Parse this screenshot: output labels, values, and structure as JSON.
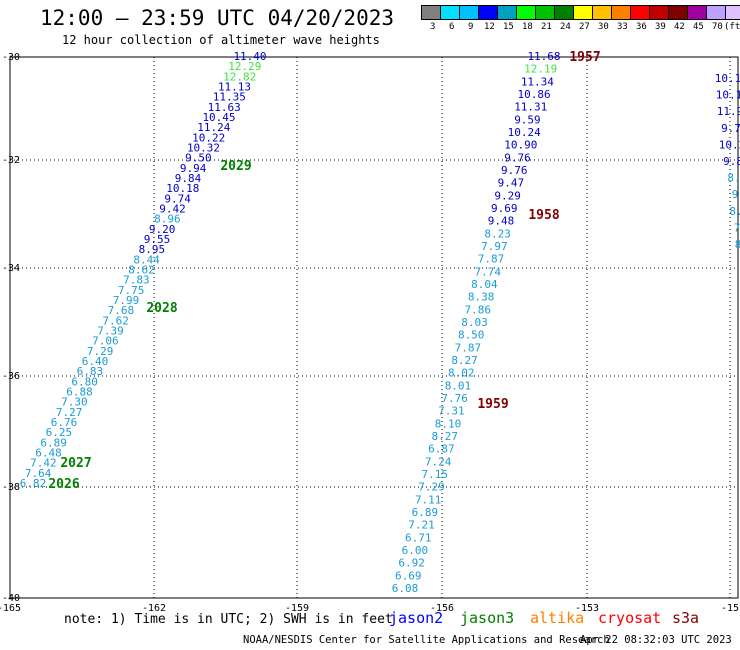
{
  "header": {
    "title": "12:00 — 23:59 UTC 04/20/2023",
    "subtitle": "12 hour collection of altimeter wave heights"
  },
  "color_scale": {
    "colors": [
      "#808080",
      "#00e0ff",
      "#00c0ff",
      "#0000ff",
      "#00a0c0",
      "#00ff00",
      "#00c000",
      "#008000",
      "#ffff00",
      "#ffc000",
      "#ff8000",
      "#ff0000",
      "#c00000",
      "#800000",
      "#a000a0",
      "#c0a0ff",
      "#e0c0ff",
      "#000000"
    ],
    "labels": [
      "3",
      "6",
      "9",
      "12",
      "15",
      "18",
      "21",
      "24",
      "27",
      "30",
      "33",
      "36",
      "39",
      "42",
      "45",
      "70",
      "(ft)"
    ]
  },
  "map": {
    "lon_ticks": [
      "-165",
      "-162",
      "-159",
      "-156",
      "-153",
      "-15"
    ],
    "lat_ticks": [
      "-30",
      "-32",
      "-34",
      "-36",
      "-38",
      "-40"
    ],
    "track_colors": {
      "lb": "#1a9cd6",
      "b": "#0000c8",
      "lg": "#40e040",
      "g": "#008000",
      "dr": "#800000"
    },
    "track1": [
      [
        "11.40",
        "b"
      ],
      [
        "12.29",
        "lg"
      ],
      [
        "12.82",
        "lg"
      ],
      [
        "11.13",
        "b"
      ],
      [
        "11.35",
        "b"
      ],
      [
        "11.63",
        "b"
      ],
      [
        "10.45",
        "b"
      ],
      [
        "11.24",
        "b"
      ],
      [
        "10.22",
        "b"
      ],
      [
        "10.32",
        "b"
      ],
      [
        "9.50",
        "b"
      ],
      [
        "9.94",
        "b"
      ],
      [
        "9.84",
        "b"
      ],
      [
        "10.18",
        "b"
      ],
      [
        "9.74",
        "b"
      ],
      [
        "9.42",
        "b"
      ],
      [
        "8.96",
        "lb"
      ],
      [
        "9.20",
        "b"
      ],
      [
        "9.55",
        "b"
      ],
      [
        "8.95",
        "b"
      ],
      [
        "8.44",
        "lb"
      ],
      [
        "8.62",
        "lb"
      ],
      [
        "7.83",
        "lb"
      ],
      [
        "7.75",
        "lb"
      ],
      [
        "7.99",
        "lb"
      ],
      [
        "7.68",
        "lb"
      ],
      [
        "7.62",
        "lb"
      ],
      [
        "7.39",
        "lb"
      ],
      [
        "7.06",
        "lb"
      ],
      [
        "7.29",
        "lb"
      ],
      [
        "6.40",
        "lb"
      ],
      [
        "6.83",
        "lb"
      ],
      [
        "6.80",
        "lb"
      ],
      [
        "6.88",
        "lb"
      ],
      [
        "7.30",
        "lb"
      ],
      [
        "7.27",
        "lb"
      ],
      [
        "6.76",
        "lb"
      ],
      [
        "6.25",
        "lb"
      ],
      [
        "6.89",
        "lb"
      ],
      [
        "6.48",
        "lb"
      ],
      [
        "7.42",
        "lb"
      ],
      [
        "7.64",
        "lb"
      ],
      [
        "6.82",
        "lb"
      ]
    ],
    "track1_times": [
      [
        "2029",
        "g"
      ],
      [
        "2028",
        "g"
      ],
      [
        "2027",
        "g"
      ],
      [
        "2026",
        "g"
      ]
    ],
    "track2": [
      [
        "11.68",
        "b"
      ],
      [
        "12.19",
        "lg"
      ],
      [
        "11.34",
        "b"
      ],
      [
        "10.86",
        "b"
      ],
      [
        "11.31",
        "b"
      ],
      [
        "9.59",
        "b"
      ],
      [
        "10.24",
        "b"
      ],
      [
        "10.90",
        "b"
      ],
      [
        "9.76",
        "b"
      ],
      [
        "9.76",
        "b"
      ],
      [
        "9.47",
        "b"
      ],
      [
        "9.29",
        "b"
      ],
      [
        "9.69",
        "b"
      ],
      [
        "9.48",
        "b"
      ],
      [
        "8.23",
        "lb"
      ],
      [
        "7.97",
        "lb"
      ],
      [
        "7.87",
        "lb"
      ],
      [
        "7.74",
        "lb"
      ],
      [
        "8.04",
        "lb"
      ],
      [
        "8.38",
        "lb"
      ],
      [
        "7.86",
        "lb"
      ],
      [
        "8.03",
        "lb"
      ],
      [
        "8.50",
        "lb"
      ],
      [
        "7.87",
        "lb"
      ],
      [
        "8.27",
        "lb"
      ],
      [
        "8.02",
        "lb"
      ],
      [
        "8.01",
        "lb"
      ],
      [
        "7.76",
        "lb"
      ],
      [
        "7.31",
        "lb"
      ],
      [
        "8.10",
        "lb"
      ],
      [
        "8.27",
        "lb"
      ],
      [
        "6.87",
        "lb"
      ],
      [
        "7.24",
        "lb"
      ],
      [
        "7.15",
        "lb"
      ],
      [
        "7.29",
        "lb"
      ],
      [
        "7.11",
        "lb"
      ],
      [
        "6.89",
        "lb"
      ],
      [
        "7.21",
        "lb"
      ],
      [
        "6.71",
        "lb"
      ],
      [
        "6.00",
        "lb"
      ],
      [
        "6.92",
        "lb"
      ],
      [
        "6.69",
        "lb"
      ],
      [
        "6.08",
        "lb"
      ]
    ],
    "track2_times": [
      [
        "1957",
        "dr"
      ],
      [
        "1958",
        "dr"
      ],
      [
        "1959",
        "dr"
      ]
    ],
    "track3": [
      [
        "10.1",
        "b"
      ],
      [
        "10.1",
        "b"
      ],
      [
        "11.9",
        "b"
      ],
      [
        "9.7",
        "b"
      ],
      [
        "10.2",
        "b"
      ],
      [
        "9.8",
        "b"
      ],
      [
        "8.",
        "lb"
      ],
      [
        "9",
        "lb"
      ],
      [
        "8.",
        "lb"
      ],
      [
        "7",
        "lb"
      ],
      [
        "8",
        "lb"
      ]
    ]
  },
  "note": "note: 1) Time is in UTC; 2) SWH is in feet",
  "legend": [
    {
      "name": "jason2",
      "color": "#0000ff"
    },
    {
      "name": "jason3",
      "color": "#008000"
    },
    {
      "name": "altika",
      "color": "#ff8000"
    },
    {
      "name": "cryosat",
      "color": "#ff0000"
    },
    {
      "name": "s3a",
      "color": "#800000"
    }
  ],
  "footer": {
    "org": "NOAA/NESDIS Center for Satellite Applications and Research",
    "date": "Apr 22 08:32:03 UTC 2023"
  }
}
